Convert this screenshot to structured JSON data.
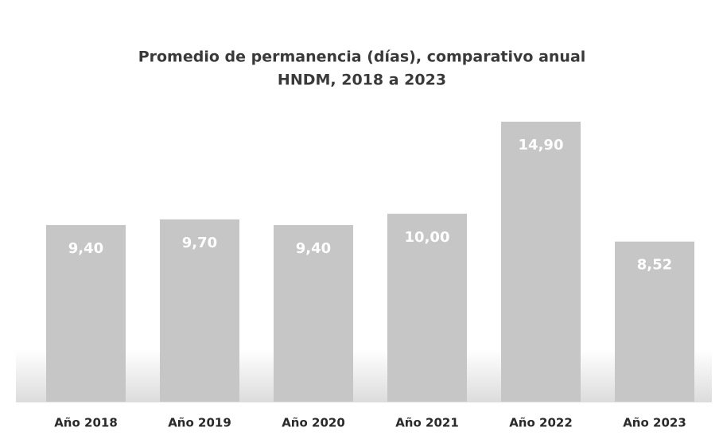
{
  "chart_data": {
    "type": "bar",
    "title": "Promedio de permanencia (días), comparativo anual",
    "subtitle": "HNDM, 2018 a 2023",
    "categories": [
      "Año 2018",
      "Año 2019",
      "Año 2020",
      "Año 2021",
      "Año 2022",
      "Año 2023"
    ],
    "values": [
      9.4,
      9.7,
      9.4,
      10.0,
      14.9,
      8.52
    ],
    "value_labels": [
      "9,40",
      "9,70",
      "9,40",
      "10,00",
      "14,90",
      "8,52"
    ],
    "color": "#c6c6c6"
  }
}
